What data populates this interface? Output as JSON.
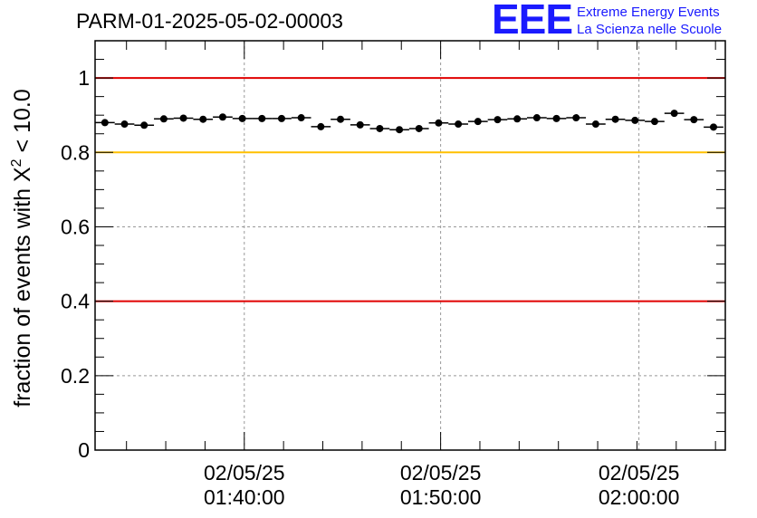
{
  "title": "PARM-01-2025-05-02-00003",
  "logo": {
    "mark": "EEE",
    "line1": "Extreme Energy Events",
    "line2": "La Scienza nelle Scuole",
    "color": "#1a1aff"
  },
  "chart_data": {
    "type": "scatter",
    "ylabel_prefix": "fraction of events with ",
    "ylabel_symbol": "X",
    "ylabel_sup": "2",
    "ylabel_suffix": " < 10.0",
    "ylim": [
      0,
      1.1
    ],
    "yticks": [
      0,
      0.2,
      0.4,
      0.6,
      0.8,
      1
    ],
    "ytick_labels": [
      "0",
      "0.2",
      "0.4",
      "0.6",
      "0.8",
      "1"
    ],
    "xlim_minutes": [
      1.0,
      33.1
    ],
    "xticks": [
      {
        "minute": 8.6,
        "date": "02/05/25",
        "time": "01:40:00"
      },
      {
        "minute": 18.6,
        "date": "02/05/25",
        "time": "01:50:00"
      },
      {
        "minute": 28.7,
        "date": "02/05/25",
        "time": "02:00:00"
      }
    ],
    "grid": true,
    "reference_lines": [
      {
        "y": 1.0,
        "color": "#e00000"
      },
      {
        "y": 0.8,
        "color": "#ffc000"
      },
      {
        "y": 0.4,
        "color": "#e00000"
      }
    ],
    "series": [
      {
        "color": "#000000",
        "x": [
          1.5,
          2.5,
          3.5,
          4.5,
          5.5,
          6.5,
          7.5,
          8.5,
          9.5,
          10.5,
          11.5,
          12.5,
          13.5,
          14.5,
          15.5,
          16.5,
          17.5,
          18.5,
          19.5,
          20.5,
          21.5,
          22.5,
          23.5,
          24.5,
          25.5,
          26.5,
          27.5,
          28.5,
          29.5,
          30.5,
          31.5,
          32.5
        ],
        "y": [
          0.88,
          0.876,
          0.873,
          0.89,
          0.892,
          0.889,
          0.895,
          0.891,
          0.891,
          0.891,
          0.893,
          0.869,
          0.889,
          0.874,
          0.864,
          0.861,
          0.864,
          0.879,
          0.876,
          0.883,
          0.888,
          0.89,
          0.893,
          0.891,
          0.893,
          0.876,
          0.889,
          0.886,
          0.883,
          0.905,
          0.888,
          0.868
        ],
        "xerr": 0.5
      }
    ]
  }
}
